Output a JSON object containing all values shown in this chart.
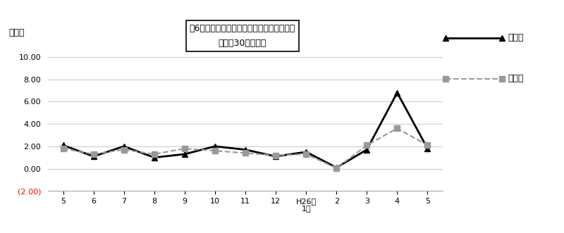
{
  "title_line1": "図6　入職率・離職率の推移（調査産業計）",
  "title_line2": "－規模30人以上－",
  "ylabel": "（％）",
  "nyushoku": [
    2.1,
    1.1,
    2.0,
    1.0,
    1.3,
    2.0,
    1.7,
    1.1,
    1.5,
    0.1,
    1.7,
    6.8,
    1.8
  ],
  "rishoku": [
    1.8,
    1.3,
    1.7,
    1.3,
    1.8,
    1.6,
    1.4,
    1.2,
    1.3,
    0.05,
    2.1,
    3.6,
    2.1
  ],
  "ylim_min": -2.0,
  "ylim_max": 10.5,
  "yticks": [
    -2.0,
    0.0,
    2.0,
    4.0,
    6.0,
    8.0,
    10.0
  ],
  "ytick_labels": [
    "(2.00)",
    "0.00",
    "2.00",
    "4.00",
    "6.00",
    "8.00",
    "10.00"
  ],
  "x_tick_labels": [
    "5",
    "6",
    "7",
    "8",
    "9",
    "10",
    "11",
    "12",
    "H26年\n1月",
    "2",
    "3",
    "4",
    "5"
  ],
  "nyushoku_color": "#000000",
  "rishoku_color": "#999999",
  "legend_nyushoku": "入職率",
  "legend_rishoku": "離職率",
  "background_color": "#ffffff",
  "grid_color": "#cccccc"
}
